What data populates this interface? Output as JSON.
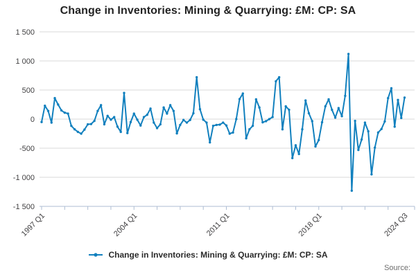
{
  "chart": {
    "title": "Change in Inventories: Mining & Quarrying: £M: CP: SA",
    "legend_label": "Change in Inventories: Mining & Quarrying: £M: CP: SA",
    "source_label": "Source:"
  },
  "colors": {
    "line": "#1180be",
    "grid": "#d9d9d9",
    "axis": "#aebdd3",
    "tick_text": "#414042",
    "title_text": "#232323",
    "source_text": "#6e6e6e"
  },
  "chart_data": {
    "type": "line",
    "title": "Change in Inventories: Mining & Quarrying: £M: CP: SA",
    "series_name": "Change in Inventories: Mining & Quarrying: £M: CP: SA",
    "unit": "£M",
    "frequency": "quarterly",
    "x_start": "1997 Q1",
    "x_end": "2024 Q3",
    "xlabel": "",
    "ylabel": "",
    "ylim": [
      -1500,
      1500
    ],
    "grid": "horizontal",
    "legend_position": "bottom",
    "marker": "dot",
    "y_ticks": [
      {
        "value": 1500,
        "label": "1 500"
      },
      {
        "value": 1000,
        "label": "1 000"
      },
      {
        "value": 500,
        "label": "500"
      },
      {
        "value": 0,
        "label": "0"
      },
      {
        "value": -500,
        "label": "-500"
      },
      {
        "value": -1000,
        "label": "-1 000"
      },
      {
        "value": -1500,
        "label": "-1 500"
      }
    ],
    "x_ticks": [
      {
        "index": 0,
        "label": "1997 Q1"
      },
      {
        "index": 28,
        "label": "2004 Q1"
      },
      {
        "index": 56,
        "label": "2011 Q1"
      },
      {
        "index": 84,
        "label": "2018 Q1"
      },
      {
        "index": 110,
        "label": "2024 Q3"
      }
    ],
    "minor_tick_step_quarters": 7,
    "values": [
      -50,
      230,
      140,
      -60,
      360,
      250,
      150,
      110,
      95,
      -115,
      -175,
      -220,
      -250,
      -180,
      -90,
      -85,
      -30,
      140,
      240,
      -90,
      55,
      -10,
      35,
      -130,
      -220,
      450,
      -240,
      -50,
      95,
      -10,
      -110,
      35,
      75,
      180,
      -60,
      -155,
      -90,
      200,
      95,
      240,
      140,
      -245,
      -100,
      -15,
      -60,
      -15,
      100,
      720,
      170,
      -10,
      -60,
      -400,
      -115,
      -100,
      -95,
      -60,
      -110,
      -250,
      -230,
      0,
      345,
      440,
      -330,
      -175,
      -115,
      340,
      200,
      -55,
      -35,
      0,
      35,
      650,
      720,
      -175,
      220,
      160,
      -670,
      -450,
      -600,
      -175,
      320,
      100,
      -35,
      -470,
      -360,
      -55,
      220,
      340,
      160,
      25,
      190,
      50,
      400,
      1120,
      -1230,
      -30,
      -530,
      -350,
      -60,
      -210,
      -950,
      -490,
      -230,
      -170,
      -40,
      360,
      530,
      -130,
      330,
      20,
      370
    ]
  }
}
